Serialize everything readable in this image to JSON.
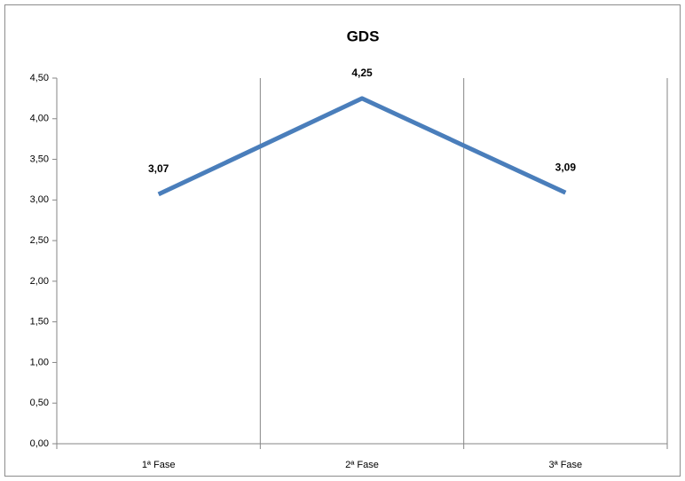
{
  "chart_data": {
    "type": "line",
    "title": "GDS",
    "categories": [
      "1ª Fase",
      "2ª Fase",
      "3ª Fase"
    ],
    "values": [
      3.07,
      4.25,
      3.09
    ],
    "value_labels": [
      "3,07",
      "4,25",
      "3,09"
    ],
    "color": "#4a7ebb",
    "ylim": [
      0,
      4.5
    ],
    "yticks": [
      {
        "value": 0,
        "label": "0,00"
      },
      {
        "value": 0.5,
        "label": "0,50"
      },
      {
        "value": 1,
        "label": "1,00"
      },
      {
        "value": 1.5,
        "label": "1,50"
      },
      {
        "value": 2,
        "label": "2,00"
      },
      {
        "value": 2.5,
        "label": "2,50"
      },
      {
        "value": 3,
        "label": "3,00"
      },
      {
        "value": 3.5,
        "label": "3,50"
      },
      {
        "value": 4,
        "label": "4,00"
      },
      {
        "value": 4.5,
        "label": "4,50"
      }
    ],
    "xgrid": true
  }
}
